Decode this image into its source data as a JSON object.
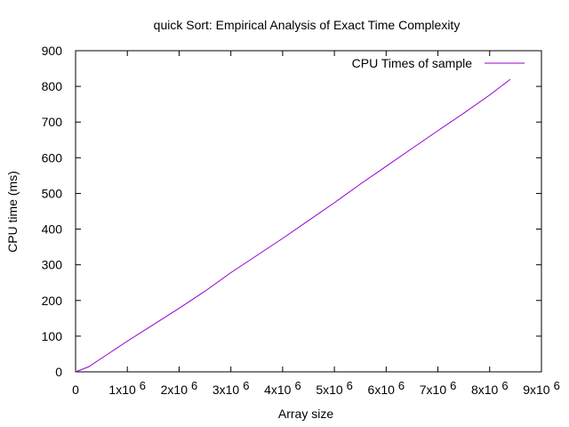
{
  "chart_data": {
    "type": "line",
    "title": "quick Sort: Empirical Analysis of Exact Time Complexity",
    "xlabel": "Array size",
    "ylabel": "CPU time (ms)",
    "xlim": [
      0,
      9000000
    ],
    "ylim": [
      0,
      900
    ],
    "x_ticks": [
      {
        "value": 0,
        "mantissa": "0",
        "exponent": ""
      },
      {
        "value": 1000000,
        "mantissa": "1x10",
        "exponent": "6"
      },
      {
        "value": 2000000,
        "mantissa": "2x10",
        "exponent": "6"
      },
      {
        "value": 3000000,
        "mantissa": "3x10",
        "exponent": "6"
      },
      {
        "value": 4000000,
        "mantissa": "4x10",
        "exponent": "6"
      },
      {
        "value": 5000000,
        "mantissa": "5x10",
        "exponent": "6"
      },
      {
        "value": 6000000,
        "mantissa": "6x10",
        "exponent": "6"
      },
      {
        "value": 7000000,
        "mantissa": "7x10",
        "exponent": "6"
      },
      {
        "value": 8000000,
        "mantissa": "8x10",
        "exponent": "6"
      },
      {
        "value": 9000000,
        "mantissa": "9x10",
        "exponent": "6"
      }
    ],
    "y_ticks": [
      0,
      100,
      200,
      300,
      400,
      500,
      600,
      700,
      800,
      900
    ],
    "grid": false,
    "legend_position": "top-right",
    "series": [
      {
        "name": "CPU Times of sample",
        "color": "#9400d3",
        "points": [
          {
            "x": 0,
            "y": 0
          },
          {
            "x": 250000,
            "y": 14
          },
          {
            "x": 500000,
            "y": 38
          },
          {
            "x": 1000000,
            "y": 86
          },
          {
            "x": 1500000,
            "y": 132
          },
          {
            "x": 2000000,
            "y": 178
          },
          {
            "x": 2500000,
            "y": 226
          },
          {
            "x": 3000000,
            "y": 278
          },
          {
            "x": 3500000,
            "y": 326
          },
          {
            "x": 4000000,
            "y": 374
          },
          {
            "x": 4500000,
            "y": 424
          },
          {
            "x": 5000000,
            "y": 474
          },
          {
            "x": 5500000,
            "y": 526
          },
          {
            "x": 6000000,
            "y": 576
          },
          {
            "x": 6500000,
            "y": 626
          },
          {
            "x": 7000000,
            "y": 676
          },
          {
            "x": 7500000,
            "y": 725
          },
          {
            "x": 8000000,
            "y": 776
          },
          {
            "x": 8400000,
            "y": 820
          }
        ]
      }
    ]
  }
}
